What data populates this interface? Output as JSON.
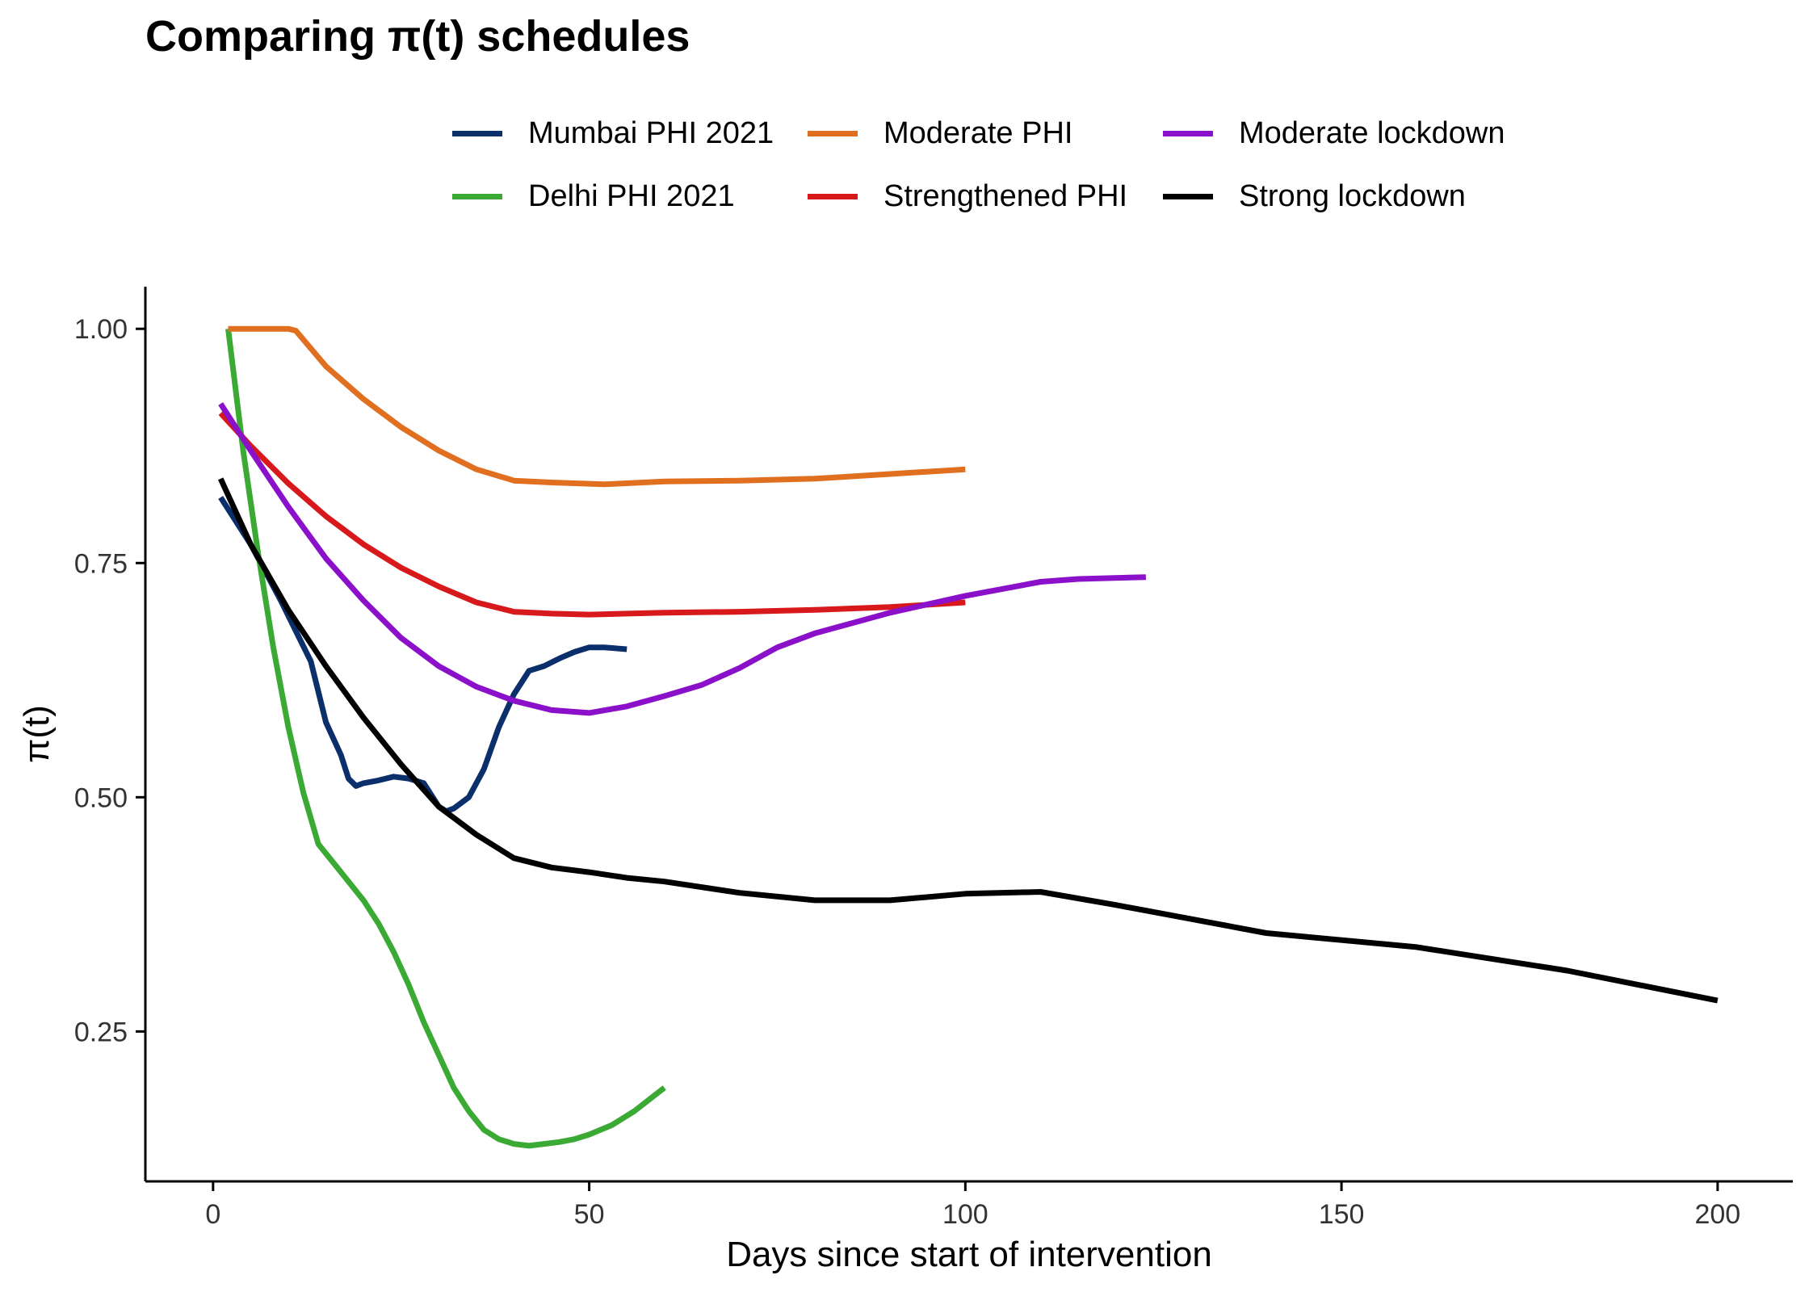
{
  "chart_data": {
    "type": "line",
    "title": "Comparing π(t) schedules",
    "xlabel": "Days since start of intervention",
    "ylabel": "π(t)",
    "xlim": [
      -9,
      210
    ],
    "ylim": [
      0.09,
      1.045
    ],
    "x_ticks": [
      0,
      50,
      100,
      150,
      200
    ],
    "x_tick_labels": [
      "0",
      "50",
      "100",
      "150",
      "200"
    ],
    "y_ticks": [
      0.25,
      0.5,
      0.75,
      1.0
    ],
    "y_tick_labels": [
      "0.25",
      "0.50",
      "0.75",
      "1.00"
    ],
    "grid": false,
    "legend_position": "top",
    "series": [
      {
        "name": "Mumbai PHI 2021",
        "color": "#0b2f6b",
        "x": [
          1,
          5,
          9,
          13,
          15,
          17,
          18,
          19,
          20,
          22,
          24,
          26,
          28,
          30,
          31,
          32,
          34,
          36,
          38,
          40,
          42,
          44,
          46,
          48,
          50,
          52,
          55
        ],
        "y": [
          0.82,
          0.77,
          0.71,
          0.645,
          0.58,
          0.545,
          0.52,
          0.512,
          0.515,
          0.518,
          0.522,
          0.52,
          0.515,
          0.49,
          0.485,
          0.488,
          0.5,
          0.53,
          0.575,
          0.61,
          0.635,
          0.64,
          0.648,
          0.655,
          0.66,
          0.66,
          0.658
        ]
      },
      {
        "name": "Delhi PHI 2021",
        "color": "#3aaa35",
        "x": [
          2,
          4,
          6,
          8,
          10,
          12,
          14,
          16,
          18,
          20,
          22,
          24,
          26,
          28,
          30,
          32,
          34,
          36,
          38,
          40,
          42,
          44,
          46,
          48,
          50,
          53,
          56,
          60
        ],
        "y": [
          1.0,
          0.87,
          0.76,
          0.66,
          0.575,
          0.505,
          0.45,
          0.43,
          0.41,
          0.39,
          0.365,
          0.335,
          0.3,
          0.26,
          0.225,
          0.19,
          0.165,
          0.145,
          0.135,
          0.13,
          0.128,
          0.13,
          0.132,
          0.135,
          0.14,
          0.15,
          0.165,
          0.19
        ]
      },
      {
        "name": "Moderate PHI",
        "color": "#e07020",
        "x": [
          2,
          6,
          10,
          11,
          15,
          20,
          25,
          30,
          35,
          40,
          45,
          52,
          60,
          70,
          80,
          90,
          100
        ],
        "y": [
          1.0,
          1.0,
          1.0,
          0.998,
          0.96,
          0.925,
          0.895,
          0.87,
          0.85,
          0.838,
          0.836,
          0.834,
          0.837,
          0.838,
          0.84,
          0.845,
          0.85
        ]
      },
      {
        "name": "Strengthened PHI",
        "color": "#d7191c",
        "x": [
          1,
          5,
          10,
          15,
          20,
          25,
          30,
          35,
          40,
          45,
          50,
          60,
          70,
          80,
          90,
          100
        ],
        "y": [
          0.91,
          0.875,
          0.835,
          0.8,
          0.77,
          0.745,
          0.725,
          0.708,
          0.698,
          0.696,
          0.695,
          0.697,
          0.698,
          0.7,
          0.703,
          0.708
        ]
      },
      {
        "name": "Moderate lockdown",
        "color": "#8b10c9",
        "x": [
          1,
          5,
          10,
          15,
          20,
          25,
          30,
          35,
          40,
          45,
          50,
          55,
          60,
          65,
          70,
          75,
          80,
          90,
          100,
          110,
          115,
          124
        ],
        "y": [
          0.92,
          0.87,
          0.81,
          0.755,
          0.71,
          0.67,
          0.64,
          0.618,
          0.603,
          0.593,
          0.59,
          0.597,
          0.608,
          0.62,
          0.638,
          0.66,
          0.675,
          0.697,
          0.715,
          0.73,
          0.733,
          0.735
        ]
      },
      {
        "name": "Strong lockdown",
        "color": "#000000",
        "x": [
          1,
          5,
          10,
          15,
          20,
          25,
          30,
          35,
          40,
          45,
          50,
          55,
          60,
          70,
          80,
          90,
          100,
          110,
          120,
          130,
          140,
          160,
          180,
          200
        ],
        "y": [
          0.84,
          0.77,
          0.7,
          0.64,
          0.585,
          0.535,
          0.49,
          0.46,
          0.435,
          0.425,
          0.42,
          0.414,
          0.41,
          0.398,
          0.39,
          0.39,
          0.397,
          0.399,
          0.385,
          0.37,
          0.355,
          0.34,
          0.315,
          0.283
        ]
      }
    ]
  }
}
